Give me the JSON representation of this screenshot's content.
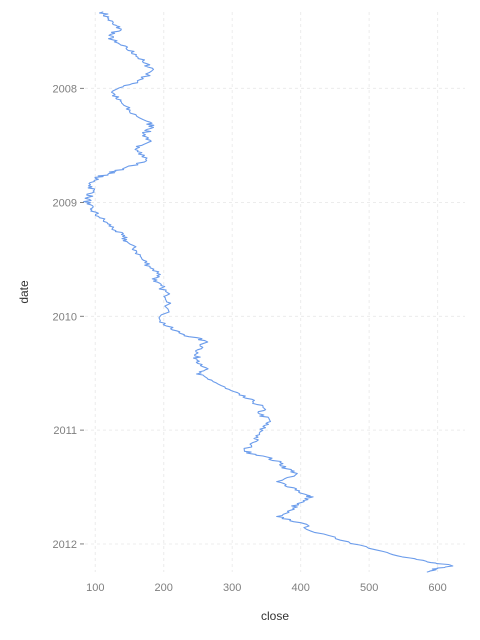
{
  "chart_data": {
    "type": "line",
    "title": "",
    "xlabel": "close",
    "ylabel": "date",
    "xlim": [
      85,
      640
    ],
    "ylim": [
      "2007-05-01",
      "2012-03-31"
    ],
    "x_ticks": [
      100,
      200,
      300,
      400,
      500,
      600
    ],
    "y_ticks": [
      "2008",
      "2009",
      "2010",
      "2011",
      "2012"
    ],
    "grid": true,
    "legend": "none",
    "color": "#6b9ceb",
    "series": [
      {
        "x": [
          111,
          118,
          126,
          138,
          120,
          128,
          145,
          160,
          170,
          185,
          170,
          150,
          125,
          130,
          140,
          150,
          175,
          185,
          170,
          180,
          160,
          168,
          175,
          140,
          120,
          100,
          93,
          97,
          90,
          88,
          95,
          105,
          118,
          130,
          140,
          148,
          160,
          168,
          180,
          195,
          185,
          198,
          205,
          210,
          195,
          210,
          230,
          260,
          255,
          245,
          252,
          262,
          248,
          270,
          290,
          310,
          330,
          345,
          340,
          355,
          345,
          340,
          330,
          318,
          345,
          370,
          380,
          395,
          365,
          390,
          405,
          415,
          395,
          385,
          365,
          400,
          420,
          470,
          520,
          560,
          590,
          620,
          600,
          585
        ],
        "y": [
          "2007-05-01",
          "2007-05-20",
          "2007-06-10",
          "2007-06-25",
          "2007-07-15",
          "2007-08-05",
          "2007-08-25",
          "2007-09-15",
          "2007-10-10",
          "2007-11-01",
          "2007-12-01",
          "2007-12-20",
          "2008-01-10",
          "2008-02-01",
          "2008-02-20",
          "2008-03-15",
          "2008-04-15",
          "2008-05-05",
          "2008-05-25",
          "2008-06-15",
          "2008-07-05",
          "2008-07-25",
          "2008-08-20",
          "2008-09-15",
          "2008-09-30",
          "2008-10-15",
          "2008-11-05",
          "2008-11-25",
          "2008-12-15",
          "2009-01-05",
          "2009-01-25",
          "2009-02-15",
          "2009-03-10",
          "2009-04-01",
          "2009-04-20",
          "2009-05-10",
          "2009-06-05",
          "2009-07-01",
          "2009-07-25",
          "2009-08-20",
          "2009-09-10",
          "2009-10-01",
          "2009-10-25",
          "2009-11-20",
          "2010-01-15",
          "2010-02-10",
          "2010-03-01",
          "2010-03-20",
          "2010-04-15",
          "2010-05-05",
          "2010-05-25",
          "2010-06-15",
          "2010-07-05",
          "2010-07-25",
          "2010-08-20",
          "2010-09-10",
          "2010-10-01",
          "2010-10-20",
          "2010-11-10",
          "2010-12-01",
          "2010-12-20",
          "2011-01-15",
          "2011-02-10",
          "2011-03-10",
          "2011-03-25",
          "2011-04-15",
          "2011-05-05",
          "2011-05-20",
          "2011-06-15",
          "2011-07-05",
          "2011-07-25",
          "2011-08-05",
          "2011-08-25",
          "2011-09-15",
          "2011-10-05",
          "2011-10-25",
          "2011-11-25",
          "2011-12-25",
          "2012-01-25",
          "2012-02-15",
          "2012-03-01",
          "2012-03-10",
          "2012-03-20",
          "2012-03-31"
        ]
      }
    ]
  }
}
